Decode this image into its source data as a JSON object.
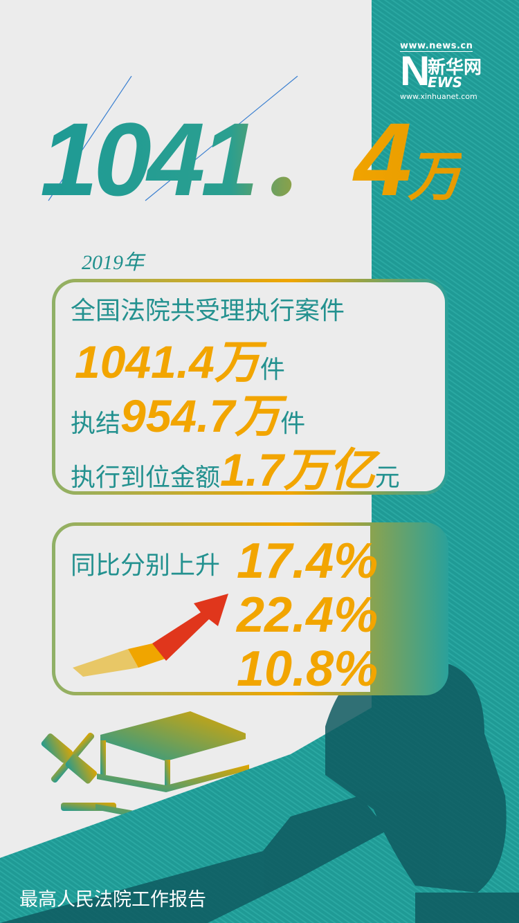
{
  "colors": {
    "teal": "#1e9a95",
    "orange": "#f2a500",
    "dark_teal": "#0f5a60",
    "arrow_red": "#e0361c",
    "background": "#ececec"
  },
  "logo": {
    "url_top": "www.news.cn",
    "letter_n": "N",
    "name_cn": "新华网",
    "letters_ews": "EWS",
    "url_bottom": "www.xinhuanet.com"
  },
  "headline": {
    "number": "1041．4",
    "unit": "万"
  },
  "year": "2019年",
  "box1": {
    "line1": "全国法院共受理执行案件",
    "line2": {
      "value": "1041.4万",
      "unit": "件"
    },
    "line3": {
      "prefix": "执结",
      "value": "954.7万",
      "unit": "件"
    },
    "line4": {
      "prefix": "执行到位金额",
      "value": "1.7万亿",
      "unit": "元"
    }
  },
  "box2": {
    "label": "同比分别上升",
    "percentages": [
      "17.4%",
      "22.4%",
      "10.8%"
    ],
    "icon": "rising-arrow-icon"
  },
  "illustration": {
    "icons": [
      "gavel-icon",
      "books-icon",
      "large-gavel-silhouette"
    ]
  },
  "footer": "最高人民法院工作报告"
}
